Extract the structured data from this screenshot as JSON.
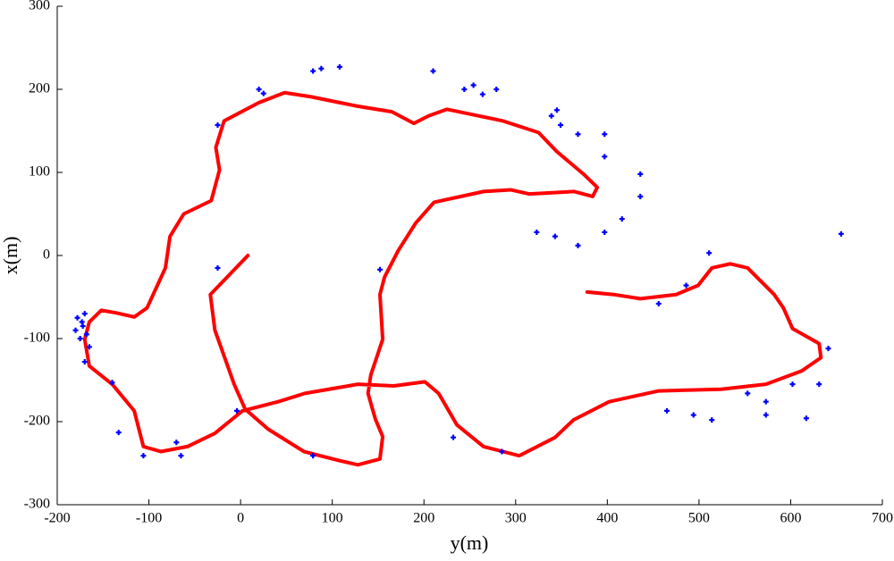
{
  "chart_data": {
    "type": "line",
    "x_label": "y(m)",
    "y_label": "x(m)",
    "xlim": [
      -200,
      700
    ],
    "ylim": [
      -300,
      300
    ],
    "xticks": [
      -200,
      -100,
      0,
      100,
      200,
      300,
      400,
      500,
      600,
      700
    ],
    "yticks": [
      -300,
      -200,
      -100,
      0,
      100,
      200,
      300
    ],
    "series": [
      {
        "type": "line",
        "color": "#ff0000",
        "x": [
          8,
          -33,
          -28,
          -7,
          5,
          30,
          69,
          108,
          128,
          152,
          155,
          147,
          139,
          142,
          155,
          152,
          157,
          172,
          191,
          211,
          265,
          295,
          315,
          364,
          384,
          389,
          374,
          345,
          325,
          286,
          225,
          205,
          189,
          165,
          126,
          77,
          48,
          20,
          -18,
          -27,
          -23,
          -32,
          -62,
          -77,
          -82,
          -102,
          -116,
          -136,
          -152,
          -165,
          -170,
          -165,
          -140,
          -116,
          -106,
          -87,
          -58,
          -28,
          2,
          41,
          70,
          128,
          167,
          201,
          216,
          236,
          265,
          304,
          343,
          363,
          402,
          456,
          524,
          573,
          612,
          633,
          631,
          602,
          592,
          582,
          553,
          534,
          514,
          499,
          475,
          436,
          407,
          378
        ],
        "values": [
          0,
          -47,
          -90,
          -155,
          -185,
          -209,
          -236,
          -247,
          -252,
          -245,
          -218,
          -197,
          -166,
          -144,
          -101,
          -47,
          -26,
          6,
          39,
          64,
          77,
          79,
          74,
          77,
          71,
          82,
          98,
          125,
          148,
          162,
          176,
          168,
          159,
          173,
          180,
          191,
          196,
          184,
          162,
          130,
          103,
          66,
          50,
          23,
          -15,
          -63,
          -74,
          -69,
          -66,
          -80,
          -101,
          -133,
          -155,
          -187,
          -230,
          -236,
          -230,
          -214,
          -187,
          -176,
          -166,
          -155,
          -157,
          -152,
          -166,
          -204,
          -230,
          -241,
          -219,
          -198,
          -176,
          -163,
          -161,
          -155,
          -139,
          -123,
          -106,
          -88,
          -63,
          -47,
          -15,
          -10,
          -15,
          -36,
          -47,
          -52,
          -47,
          -44
        ]
      },
      {
        "type": "scatter",
        "color": "#0000ff",
        "x": [
          -178,
          -172,
          -168,
          -175,
          -180,
          -170,
          -165,
          -173,
          -133,
          -140,
          -170,
          -106,
          -70,
          -65,
          -4,
          20,
          25,
          79,
          88,
          108,
          210,
          244,
          254,
          264,
          279,
          339,
          345,
          349,
          368,
          397,
          397,
          436,
          436,
          416,
          397,
          368,
          343,
          323,
          655,
          511,
          -25,
          -25,
          152,
          486,
          456,
          465,
          494,
          514,
          553,
          573,
          602,
          631,
          641,
          617,
          573,
          285,
          79,
          232
        ],
        "values": [
          -75,
          -85,
          -95,
          -100,
          -90,
          -70,
          -110,
          -80,
          -213,
          -153,
          -128,
          -241,
          -225,
          -241,
          -187,
          200,
          195,
          222,
          225,
          227,
          222,
          200,
          205,
          194,
          200,
          168,
          175,
          157,
          146,
          146,
          119,
          98,
          71,
          44,
          28,
          12,
          23,
          28,
          26,
          3,
          157,
          -15,
          -17,
          -36,
          -58,
          -187,
          -192,
          -198,
          -166,
          -176,
          -155,
          -155,
          -112,
          -196,
          -192,
          -236,
          -241,
          -219
        ]
      }
    ]
  }
}
